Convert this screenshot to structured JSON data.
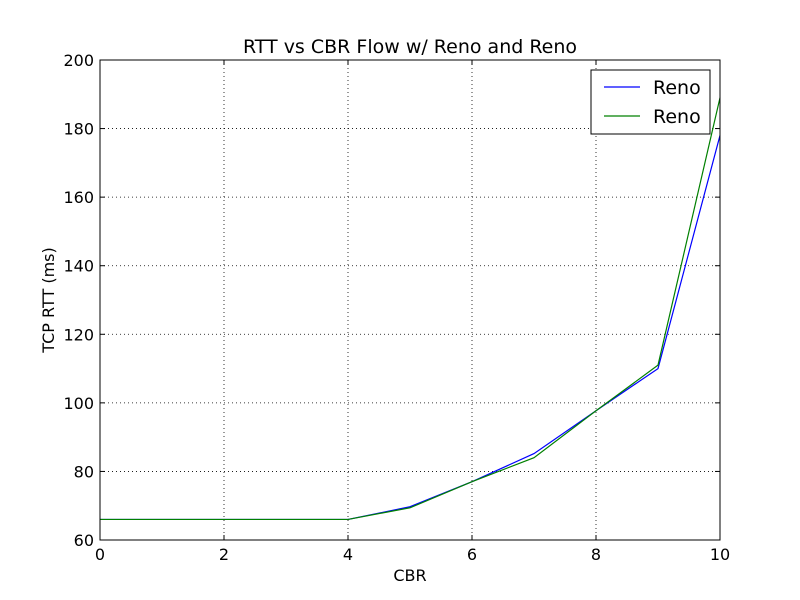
{
  "chart_data": {
    "type": "line",
    "title": "RTT vs CBR Flow w/ Reno and Reno",
    "xlabel": "CBR",
    "ylabel": "TCP RTT (ms)",
    "xlim": [
      0,
      10
    ],
    "ylim": [
      60,
      200
    ],
    "xticks": [
      0,
      2,
      4,
      6,
      8,
      10
    ],
    "yticks": [
      60,
      80,
      100,
      120,
      140,
      160,
      180,
      200
    ],
    "grid": true,
    "legend_position": "top-right",
    "x": [
      0,
      1,
      2,
      3,
      4,
      5,
      6,
      7,
      8,
      9,
      10
    ],
    "series": [
      {
        "name": "Reno",
        "color": "#0000ff",
        "values": [
          66,
          66,
          66,
          66,
          66,
          69.7,
          77,
          85.2,
          97.7,
          110,
          178
        ]
      },
      {
        "name": "Reno",
        "color": "#008000",
        "values": [
          66,
          66,
          66,
          66,
          66,
          69.4,
          77,
          84,
          97.7,
          111,
          189
        ]
      }
    ]
  }
}
